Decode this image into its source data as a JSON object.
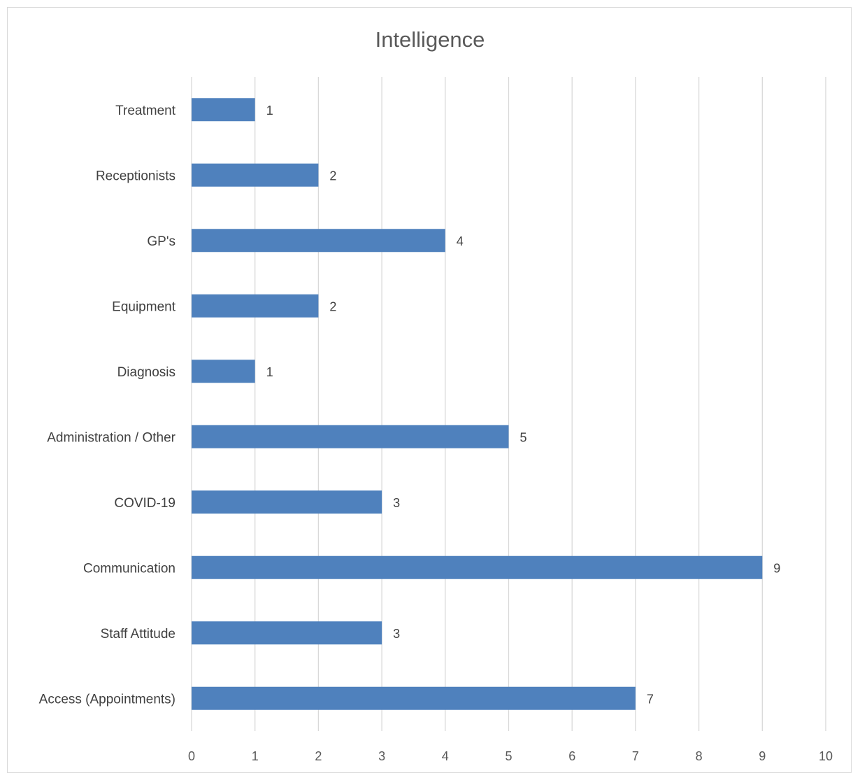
{
  "chart_data": {
    "type": "bar",
    "orientation": "horizontal",
    "title": "Intelligence",
    "categories": [
      "Access (Appointments)",
      "Staff Attitude",
      "Communication",
      "COVID-19",
      "Administration / Other",
      "Diagnosis",
      "Equipment",
      "GP's",
      "Receptionists",
      "Treatment"
    ],
    "values": [
      7,
      3,
      9,
      3,
      5,
      1,
      2,
      4,
      2,
      1
    ],
    "xlim": [
      0,
      10
    ],
    "xticks": [
      "0",
      "1",
      "2",
      "3",
      "4",
      "5",
      "6",
      "7",
      "8",
      "9",
      "10"
    ],
    "grid": "vertical",
    "data_labels": true,
    "bar_color": "#4f81bd",
    "legend": "none"
  }
}
